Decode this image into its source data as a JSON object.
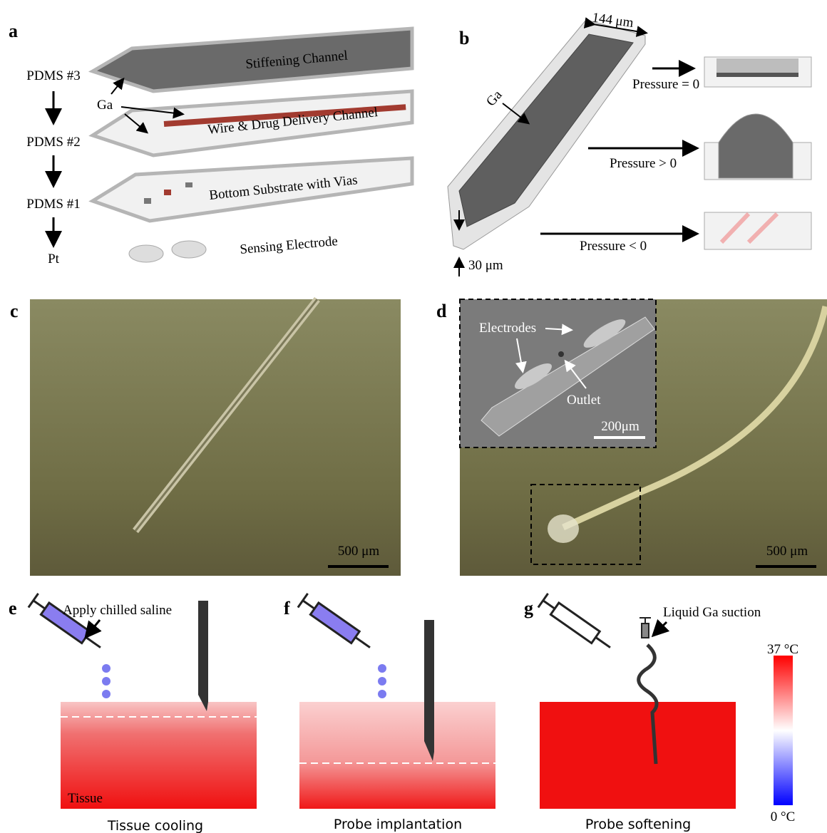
{
  "panels": {
    "a": {
      "label": "a",
      "layers": [
        "PDMS #3",
        "PDMS #2",
        "PDMS #1",
        "Pt"
      ],
      "callout": "Ga",
      "parts": [
        "Stiffening Channel",
        "Wire & Drug Delivery Channel",
        "Bottom Substrate with Vias",
        "Sensing Electrode"
      ]
    },
    "b": {
      "label": "b",
      "width": "144 μm",
      "callout": "Ga",
      "thickness": "30 μm",
      "states": [
        "Pressure = 0",
        "Pressure > 0",
        "Pressure < 0"
      ]
    },
    "c": {
      "label": "c",
      "scale_bar": "500 μm"
    },
    "d": {
      "label": "d",
      "inset": {
        "electrodes": "Electrodes",
        "outlet": "Outlet",
        "scale_bar": "200μm"
      },
      "scale_bar": "500 μm"
    },
    "e": {
      "label": "e",
      "annotation": "Apply chilled saline",
      "tissue": "Tissue",
      "caption": "Tissue cooling"
    },
    "f": {
      "label": "f",
      "caption": "Probe implantation"
    },
    "g": {
      "label": "g",
      "annotation": "Liquid Ga suction",
      "caption": "Probe softening",
      "colorbar": {
        "max": "37 °C",
        "min": "0 °C"
      }
    }
  }
}
